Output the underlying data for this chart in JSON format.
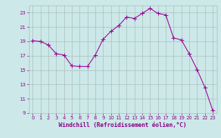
{
  "x": [
    0,
    1,
    2,
    3,
    4,
    5,
    6,
    7,
    8,
    9,
    10,
    11,
    12,
    13,
    14,
    15,
    16,
    17,
    18,
    19,
    20,
    21,
    22,
    23
  ],
  "y": [
    19.1,
    19.0,
    18.5,
    17.3,
    17.1,
    15.6,
    15.5,
    15.5,
    17.1,
    19.3,
    20.4,
    21.2,
    22.4,
    22.2,
    22.9,
    23.6,
    22.9,
    22.7,
    19.5,
    19.2,
    17.3,
    15.1,
    12.6,
    9.4
  ],
  "line_color": "#990099",
  "marker": "+",
  "marker_size": 4,
  "bg_color": "#cce8e8",
  "grid_color": "#aabbbb",
  "xlabel": "Windchill (Refroidissement éolien,°C)",
  "ylim": [
    9,
    24
  ],
  "xlim": [
    -0.5,
    23.5
  ],
  "yticks": [
    9,
    11,
    13,
    15,
    17,
    19,
    21,
    23
  ],
  "xticks": [
    0,
    1,
    2,
    3,
    4,
    5,
    6,
    7,
    8,
    9,
    10,
    11,
    12,
    13,
    14,
    15,
    16,
    17,
    18,
    19,
    20,
    21,
    22,
    23
  ],
  "tick_color": "#880088",
  "label_color": "#880088",
  "tick_fontsize": 5,
  "xlabel_fontsize": 6
}
